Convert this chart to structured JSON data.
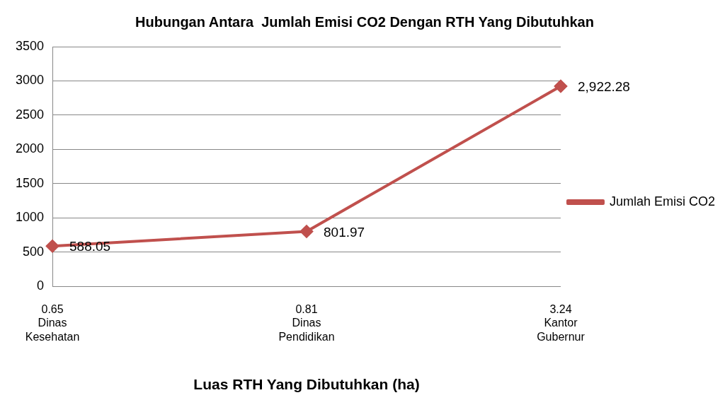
{
  "chart_data": {
    "type": "line",
    "title": "Hubungan Antara  Jumlah Emisi CO2 Dengan RTH Yang Dibutuhkan",
    "xlabel": "Luas RTH Yang Dibutuhkan (ha)",
    "categories": [
      "0.65\nDinas\nKesehatan",
      "0.81\nDinas\nPendidikan",
      "3.24\nKantor\nGubernur"
    ],
    "series": [
      {
        "name": "Jumlah Emisi CO2",
        "color": "#c0504d",
        "values": [
          588.05,
          801.97,
          2922.28
        ],
        "value_labels": [
          "588.05",
          "801.97",
          "2,922.28"
        ]
      }
    ],
    "ylim": [
      0,
      3500
    ],
    "yticks": [
      0,
      500,
      1000,
      1500,
      2000,
      2500,
      3000,
      3500
    ],
    "grid": "y",
    "legend": "right",
    "marker": "diamond",
    "line_style": "solid"
  }
}
